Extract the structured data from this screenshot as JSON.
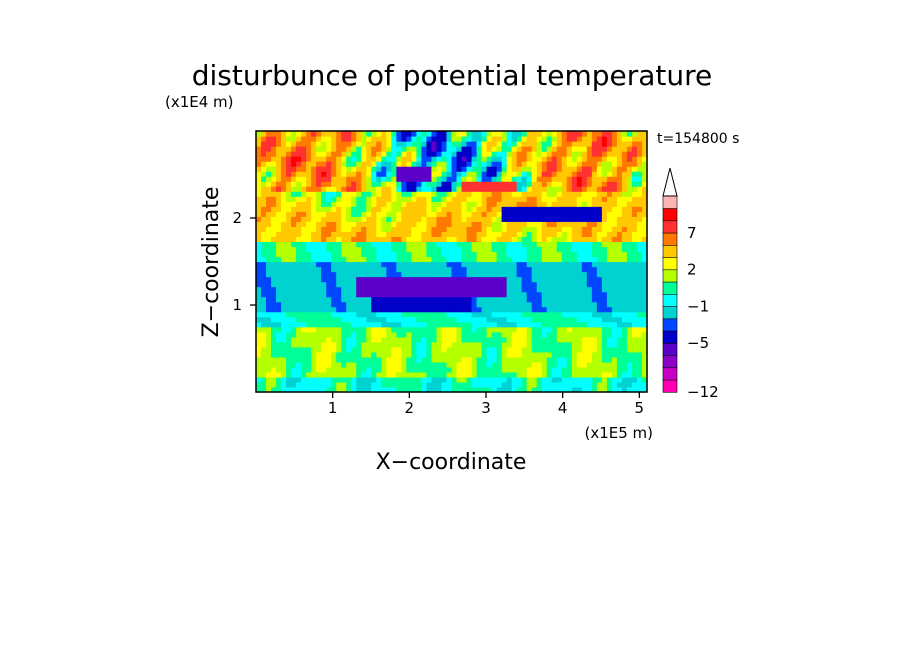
{
  "chart_data": {
    "type": "heatmap",
    "title": "disturbunce of potential temperature",
    "time_label": "t=154800 s",
    "xlabel": "X−coordinate",
    "ylabel": "Z−coordinate",
    "x_unit": "(x1E5 m)",
    "y_unit": "(x1E4 m)",
    "xlim": [
      0,
      5.1
    ],
    "ylim": [
      0,
      3.0
    ],
    "x_ticks": [
      "1",
      "2",
      "3",
      "4",
      "5"
    ],
    "y_ticks": [
      "1",
      "2"
    ],
    "colorbar": {
      "levels": [
        -12,
        -11,
        -9,
        -7,
        -5,
        -3,
        -2,
        -1,
        0,
        1,
        2,
        3,
        5,
        7,
        9,
        11
      ],
      "labels": [
        "−12",
        "−5",
        "−1",
        "2",
        "7"
      ],
      "colors": [
        "#ff00b4",
        "#c800c8",
        "#8c00c8",
        "#5a00c8",
        "#0000c8",
        "#0046ff",
        "#00d2d2",
        "#00ffff",
        "#00ff96",
        "#b4ff00",
        "#ffff00",
        "#ffc800",
        "#ff7800",
        "#ff3232",
        "#ff0000",
        "#ffb4b4"
      ]
    },
    "field_description_bands": [
      {
        "z_range": [
          0,
          0.75
        ],
        "typical": [
          -1,
          2
        ]
      },
      {
        "z_range": [
          0.75,
          1.5
        ],
        "typical": [
          -5,
          -1
        ]
      },
      {
        "z_range": [
          1.5,
          2.3
        ],
        "typical": [
          -1,
          7
        ]
      },
      {
        "z_range": [
          2.3,
          3.0
        ],
        "typical": [
          -5,
          9
        ]
      }
    ]
  }
}
